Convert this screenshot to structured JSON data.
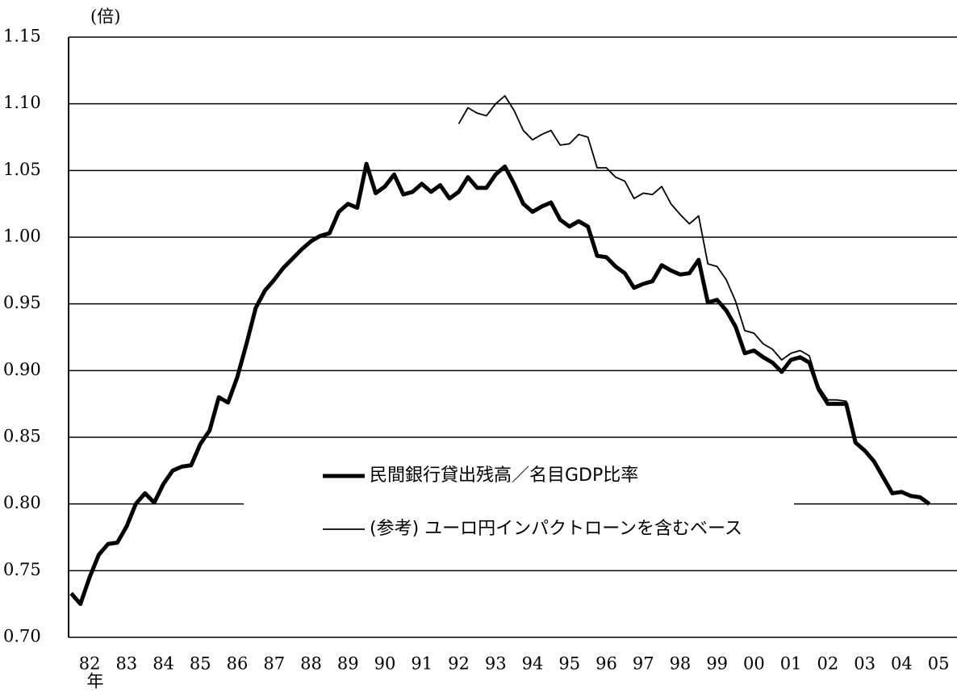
{
  "chart_data": {
    "type": "line",
    "y_unit": "(倍)",
    "x_label": "年",
    "x": [
      1982,
      1982.25,
      1982.5,
      1982.75,
      1983,
      1983.25,
      1983.5,
      1983.75,
      1984,
      1984.25,
      1984.5,
      1984.75,
      1985,
      1985.25,
      1985.5,
      1985.75,
      1986,
      1986.25,
      1986.5,
      1986.75,
      1987,
      1987.25,
      1987.5,
      1987.75,
      1988,
      1988.25,
      1988.5,
      1988.75,
      1989,
      1989.25,
      1989.5,
      1989.75,
      1990,
      1990.25,
      1990.5,
      1990.75,
      1991,
      1991.25,
      1991.5,
      1991.75,
      1992,
      1992.25,
      1992.5,
      1992.75,
      1993,
      1993.25,
      1993.5,
      1993.75,
      1994,
      1994.25,
      1994.5,
      1994.75,
      1995,
      1995.25,
      1995.5,
      1995.75,
      1996,
      1996.25,
      1996.5,
      1996.75,
      1997,
      1997.25,
      1997.5,
      1997.75,
      1998,
      1998.25,
      1998.5,
      1998.75,
      1999,
      1999.25,
      1999.5,
      1999.75,
      2000,
      2000.25,
      2000.5,
      2000.75,
      2001,
      2001.25,
      2001.5,
      2001.75,
      2002,
      2002.25,
      2002.5,
      2002.75,
      2003,
      2003.25,
      2003.5,
      2003.75,
      2004,
      2004.25,
      2004.5,
      2004.75,
      2005,
      2005.25
    ],
    "series": [
      {
        "name": "民間銀行貸出残高／名目GDP比率",
        "color": "#000000",
        "width": 5,
        "values": [
          0.733,
          0.725,
          0.745,
          0.762,
          0.77,
          0.771,
          0.783,
          0.8,
          0.808,
          0.801,
          0.815,
          0.825,
          0.828,
          0.829,
          0.845,
          0.855,
          0.88,
          0.876,
          0.895,
          0.92,
          0.947,
          0.96,
          0.968,
          0.977,
          0.984,
          0.991,
          0.997,
          1.001,
          1.003,
          1.019,
          1.025,
          1.022,
          1.055,
          1.033,
          1.038,
          1.047,
          1.032,
          1.034,
          1.04,
          1.034,
          1.039,
          1.029,
          1.034,
          1.045,
          1.037,
          1.037,
          1.047,
          1.053,
          1.04,
          1.025,
          1.019,
          1.023,
          1.026,
          1.013,
          1.008,
          1.012,
          1.008,
          0.986,
          0.985,
          0.978,
          0.973,
          0.962,
          0.965,
          0.967,
          0.979,
          0.975,
          0.972,
          0.973,
          0.983,
          0.951,
          0.953,
          0.945,
          0.933,
          0.913,
          0.915,
          0.91,
          0.906,
          0.899,
          0.908,
          0.91,
          0.906,
          0.886,
          0.875,
          0.875,
          0.875,
          0.846,
          0.84,
          0.832,
          0.82,
          0.808,
          0.809,
          0.806,
          0.805,
          0.8
        ]
      },
      {
        "name": "(参考) ユーロ円インパクトローンを含むベース",
        "color": "#000000",
        "width": 1.8,
        "values": [
          null,
          null,
          null,
          null,
          null,
          null,
          null,
          null,
          null,
          null,
          null,
          null,
          null,
          null,
          null,
          null,
          null,
          null,
          null,
          null,
          null,
          null,
          null,
          null,
          null,
          null,
          null,
          null,
          null,
          null,
          null,
          null,
          null,
          null,
          null,
          null,
          null,
          null,
          null,
          null,
          null,
          null,
          1.085,
          1.097,
          1.093,
          1.091,
          1.1,
          1.106,
          1.095,
          1.08,
          1.073,
          1.077,
          1.08,
          1.069,
          1.07,
          1.077,
          1.075,
          1.052,
          1.052,
          1.045,
          1.042,
          1.029,
          1.033,
          1.032,
          1.038,
          1.025,
          1.017,
          1.01,
          1.016,
          0.98,
          0.978,
          0.968,
          0.952,
          0.93,
          0.928,
          0.92,
          0.916,
          0.908,
          0.913,
          0.915,
          0.911,
          0.888,
          0.878,
          0.878,
          0.877,
          0.847,
          null,
          null,
          null,
          null,
          null,
          null,
          null,
          null
        ]
      }
    ],
    "xlim": [
      1981.93,
      2006
    ],
    "xticks": [
      {
        "value": 1982.5,
        "label": "82"
      },
      {
        "value": 1983.5,
        "label": "83"
      },
      {
        "value": 1984.5,
        "label": "84"
      },
      {
        "value": 1985.5,
        "label": "85"
      },
      {
        "value": 1986.5,
        "label": "86"
      },
      {
        "value": 1987.5,
        "label": "87"
      },
      {
        "value": 1988.5,
        "label": "88"
      },
      {
        "value": 1989.5,
        "label": "89"
      },
      {
        "value": 1990.5,
        "label": "90"
      },
      {
        "value": 1991.5,
        "label": "91"
      },
      {
        "value": 1992.5,
        "label": "92"
      },
      {
        "value": 1993.5,
        "label": "93"
      },
      {
        "value": 1994.5,
        "label": "94"
      },
      {
        "value": 1995.5,
        "label": "95"
      },
      {
        "value": 1996.5,
        "label": "96"
      },
      {
        "value": 1997.5,
        "label": "97"
      },
      {
        "value": 1998.5,
        "label": "98"
      },
      {
        "value": 1999.5,
        "label": "99"
      },
      {
        "value": 2000.5,
        "label": "00"
      },
      {
        "value": 2001.5,
        "label": "01"
      },
      {
        "value": 2002.5,
        "label": "02"
      },
      {
        "value": 2003.5,
        "label": "03"
      },
      {
        "value": 2004.5,
        "label": "04"
      },
      {
        "value": 2005.5,
        "label": "05"
      }
    ],
    "ylim": [
      0.7,
      1.15
    ],
    "yticks": [
      {
        "value": 0.7,
        "label": "0.70"
      },
      {
        "value": 0.75,
        "label": "0.75"
      },
      {
        "value": 0.8,
        "label": "0.80"
      },
      {
        "value": 0.85,
        "label": "0.85"
      },
      {
        "value": 0.9,
        "label": "0.90"
      },
      {
        "value": 0.95,
        "label": "0.95"
      },
      {
        "value": 1.0,
        "label": "1.00"
      },
      {
        "value": 1.05,
        "label": "1.05"
      },
      {
        "value": 1.1,
        "label": "1.10"
      },
      {
        "value": 1.15,
        "label": "1.15"
      }
    ],
    "grid": true
  }
}
